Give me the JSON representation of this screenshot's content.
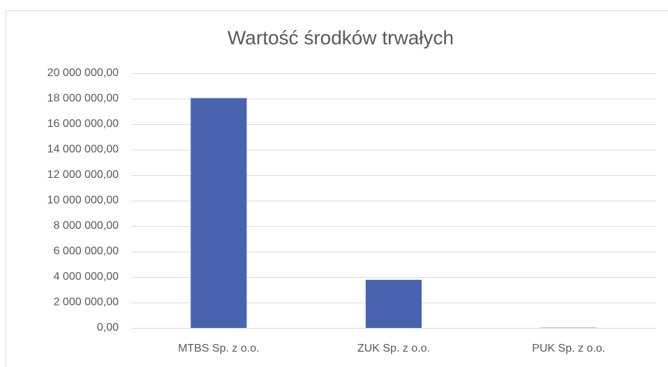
{
  "chart_data": {
    "type": "bar",
    "title": "Wartość środków trwałych",
    "categories": [
      "MTBS Sp. z o.o.",
      "ZUK Sp. z o.o.",
      "PUK Sp. z o.o."
    ],
    "values": [
      18050000,
      3780000,
      20000
    ],
    "color": "#4864ae",
    "ylim": [
      0,
      20000000
    ],
    "yticks": [
      {
        "value": 0,
        "label": "0,00"
      },
      {
        "value": 2000000,
        "label": "2 000 000,00"
      },
      {
        "value": 4000000,
        "label": "4 000 000,00"
      },
      {
        "value": 6000000,
        "label": "6 000 000,00"
      },
      {
        "value": 8000000,
        "label": "8 000 000,00"
      },
      {
        "value": 10000000,
        "label": "10 000 000,00"
      },
      {
        "value": 12000000,
        "label": "12 000 000,00"
      },
      {
        "value": 14000000,
        "label": "14 000 000,00"
      },
      {
        "value": 16000000,
        "label": "16 000 000,00"
      },
      {
        "value": 18000000,
        "label": "18 000 000,00"
      },
      {
        "value": 20000000,
        "label": "20 000 000,00"
      }
    ],
    "grid": true
  }
}
